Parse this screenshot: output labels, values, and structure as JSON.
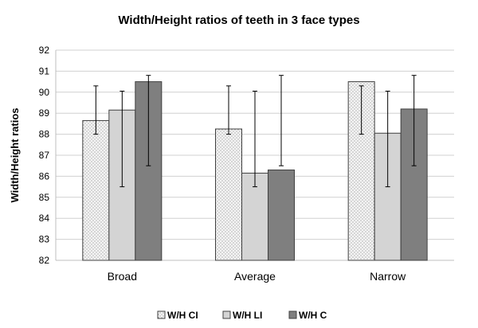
{
  "chart_data": {
    "type": "bar",
    "title": "Width/Height ratios of teeth in 3 face types",
    "xlabel": "",
    "ylabel": "Width/Height ratios",
    "ylim": [
      82,
      92
    ],
    "yticks": [
      82,
      83,
      84,
      85,
      86,
      87,
      88,
      89,
      90,
      91,
      92
    ],
    "grid": true,
    "legend_position": "bottom",
    "categories": [
      "Broad",
      "Average",
      "Narrow"
    ],
    "series": [
      {
        "name": "W/H CI",
        "pattern": "dotted",
        "color": "#ececec",
        "values": [
          88.65,
          88.25,
          90.5
        ],
        "err_low": [
          88.0,
          88.0,
          88.0
        ],
        "err_high": [
          90.3,
          90.3,
          90.3
        ]
      },
      {
        "name": "W/H LI",
        "pattern": "solid",
        "color": "#d4d4d4",
        "values": [
          89.15,
          86.15,
          88.05
        ],
        "err_low": [
          85.5,
          85.5,
          85.5
        ],
        "err_high": [
          90.05,
          90.05,
          90.05
        ]
      },
      {
        "name": "W/H C",
        "pattern": "solid",
        "color": "#7f7f7f",
        "values": [
          90.5,
          86.3,
          89.2
        ],
        "err_low": [
          86.5,
          86.5,
          86.5
        ],
        "err_high": [
          90.8,
          90.8,
          90.8
        ]
      }
    ]
  }
}
